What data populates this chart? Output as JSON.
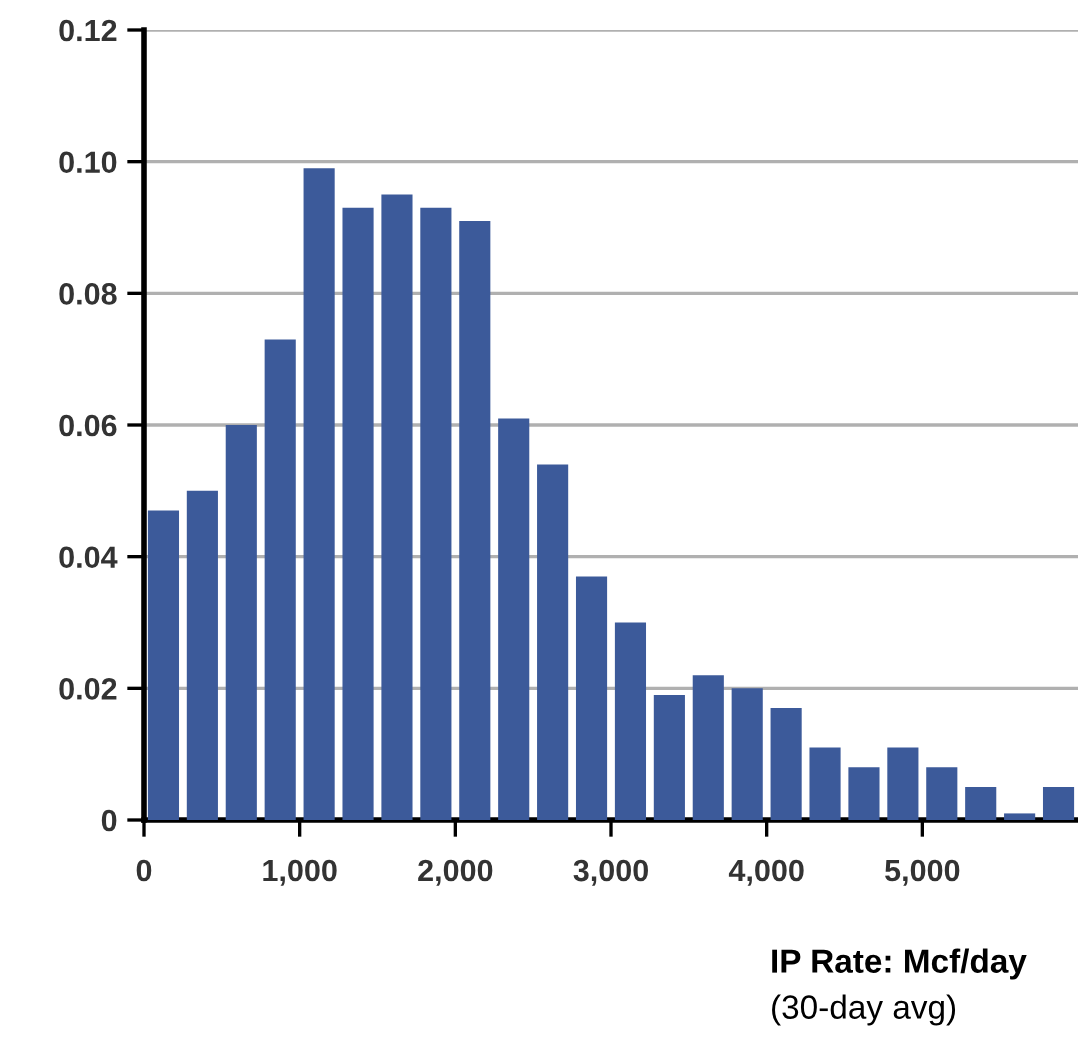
{
  "chart_data": {
    "type": "histogram",
    "bins": [
      0,
      250,
      500,
      750,
      1000,
      1250,
      1500,
      1750,
      2000,
      2250,
      2500,
      2750,
      3000,
      3250,
      3500,
      3750,
      4000,
      4250,
      4500,
      4750,
      5000,
      5250,
      5500,
      5750,
      6000
    ],
    "values": [
      0.047,
      0.05,
      0.06,
      0.073,
      0.099,
      0.093,
      0.095,
      0.093,
      0.091,
      0.061,
      0.054,
      0.037,
      0.03,
      0.019,
      0.022,
      0.02,
      0.017,
      0.011,
      0.008,
      0.011,
      0.008,
      0.005,
      0.001,
      0.005
    ],
    "color": "#3c5a9a",
    "xlim": [
      0,
      6000
    ],
    "xticks": [
      0,
      {
        "value": 1000,
        "label": "1,000"
      },
      {
        "value": 2000,
        "label": "2,000"
      },
      {
        "value": 3000,
        "label": "3,000"
      },
      {
        "value": 4000,
        "label": "4,000"
      },
      {
        "value": 5000,
        "label": "5,000"
      }
    ],
    "ylim": [
      0,
      0.12
    ],
    "yticks": [
      0,
      0.02,
      0.04,
      0.06,
      0.08,
      {
        "value": 0.1,
        "label": "0.10"
      },
      0.12
    ],
    "grid": "y",
    "xlabel": "IP Rate: Mcf/day",
    "annotations": [
      "(30-day avg)"
    ]
  }
}
